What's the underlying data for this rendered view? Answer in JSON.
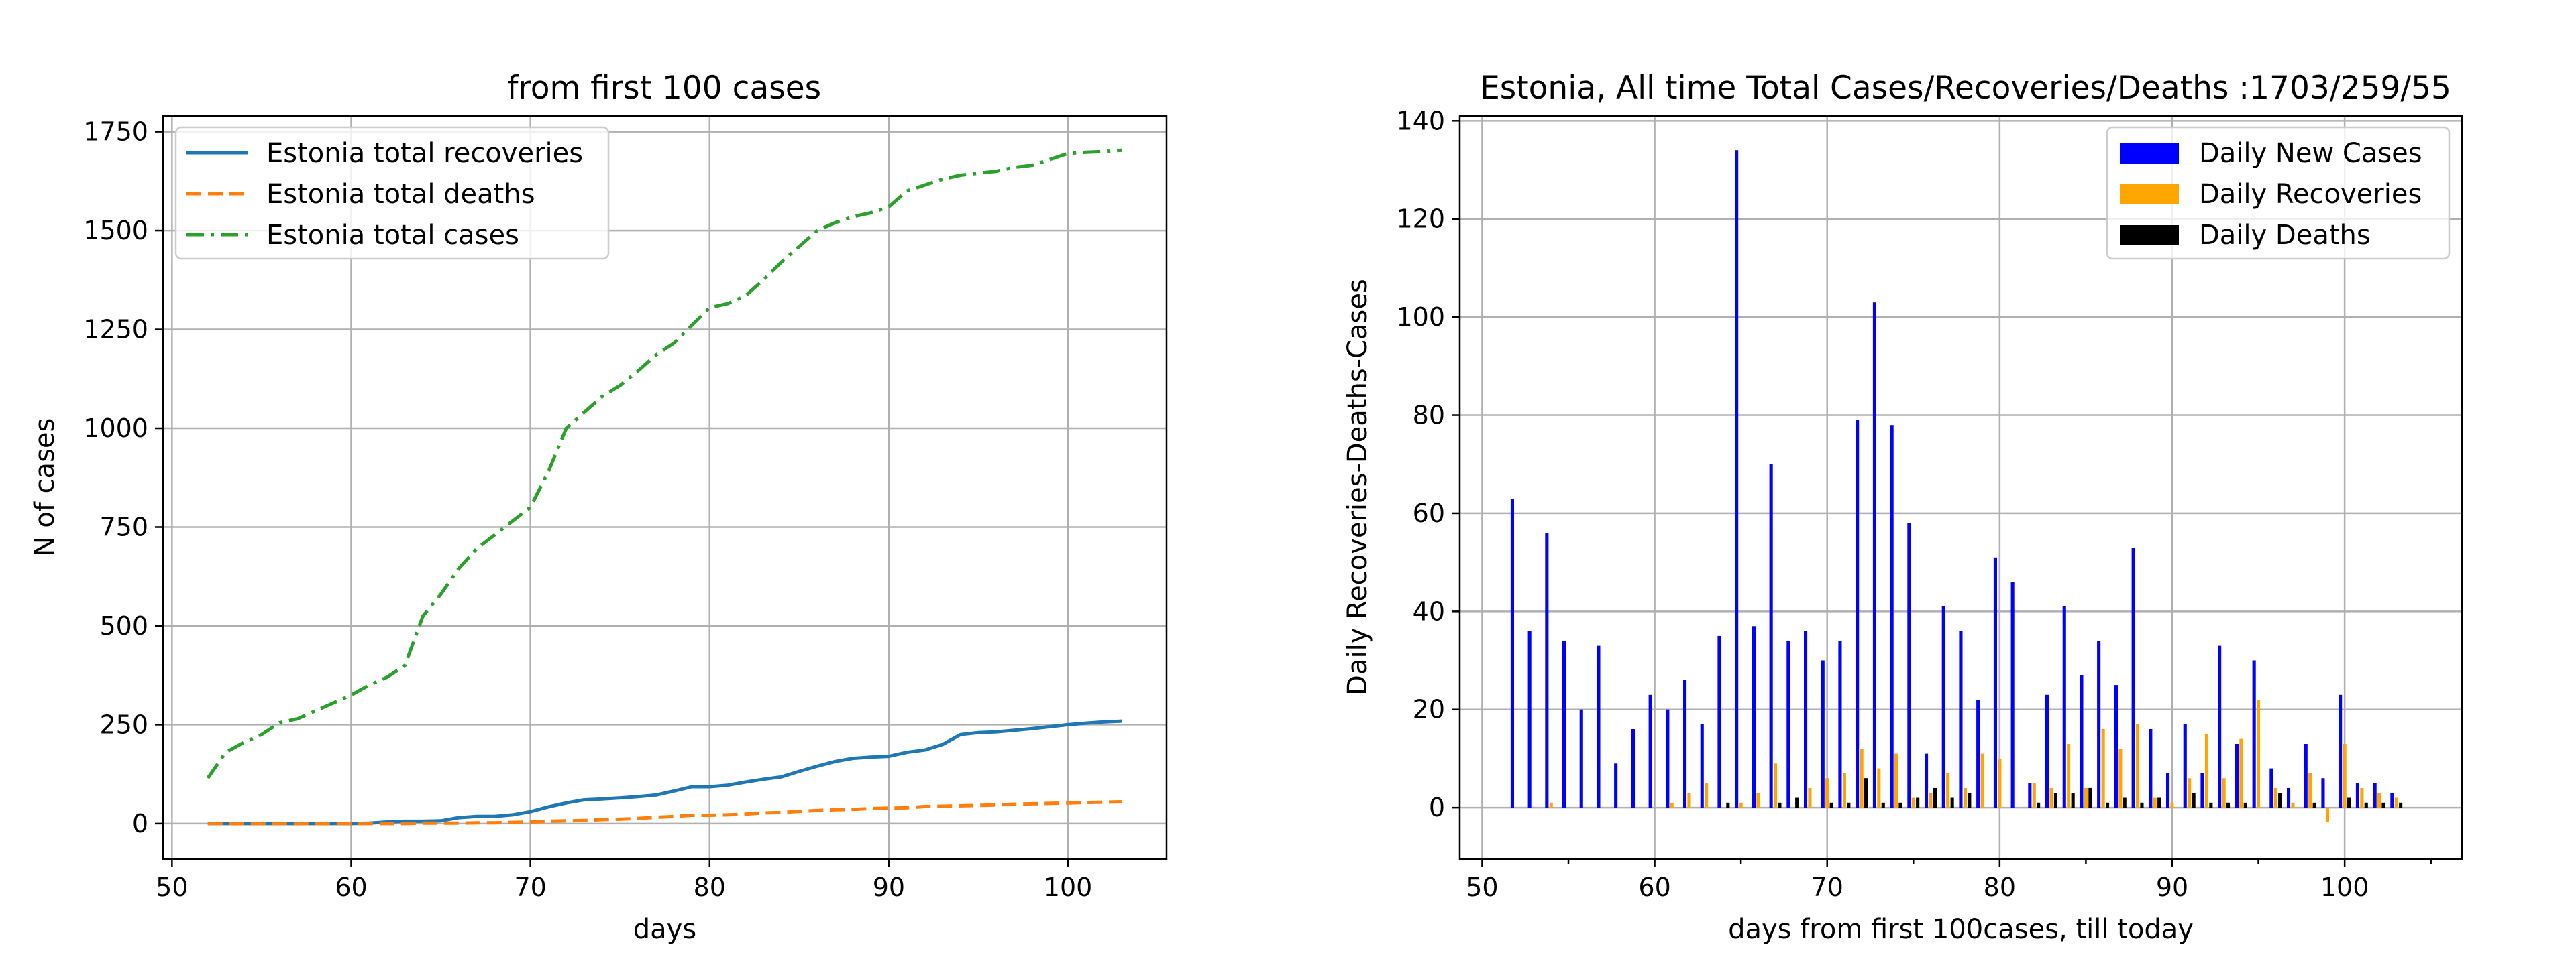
{
  "chart_data": [
    {
      "type": "line",
      "title": "from first 100  cases",
      "xlabel": "days",
      "ylabel": "N of cases",
      "xlim": [
        49.5,
        105.5
      ],
      "ylim": [
        -90,
        1790
      ],
      "xticks": [
        50,
        60,
        70,
        80,
        90,
        100
      ],
      "yticks": [
        0,
        250,
        500,
        750,
        1000,
        1250,
        1500,
        1750
      ],
      "grid": true,
      "legend_position": "upper-left",
      "x": [
        52,
        53,
        54,
        55,
        56,
        57,
        58,
        59,
        60,
        61,
        62,
        63,
        64,
        65,
        66,
        67,
        68,
        69,
        70,
        71,
        72,
        73,
        74,
        75,
        76,
        77,
        78,
        79,
        80,
        81,
        82,
        83,
        84,
        85,
        86,
        87,
        88,
        89,
        90,
        91,
        92,
        93,
        94,
        95,
        96,
        97,
        98,
        99,
        100,
        101,
        102,
        103
      ],
      "series": [
        {
          "name": "Estonia total recoveries",
          "color": "#1f77b4",
          "style": "solid",
          "values": [
            0,
            0,
            0,
            0,
            0,
            0,
            0,
            0,
            0,
            1,
            4,
            6,
            6,
            7,
            15,
            18,
            18,
            22,
            30,
            42,
            52,
            60,
            62,
            65,
            68,
            72,
            82,
            93,
            93,
            97,
            105,
            112,
            118,
            132,
            145,
            157,
            165,
            168,
            170,
            180,
            186,
            200,
            225,
            230,
            232,
            236,
            240,
            245,
            250,
            254,
            257,
            259
          ]
        },
        {
          "name": "Estonia total deaths",
          "color": "#ff7f0e",
          "style": "dashed",
          "values": [
            0,
            0,
            0,
            0,
            0,
            0,
            0,
            0,
            0,
            0,
            0,
            0,
            1,
            1,
            1,
            2,
            2,
            3,
            4,
            6,
            7,
            8,
            10,
            11,
            13,
            16,
            18,
            21,
            21,
            22,
            24,
            27,
            28,
            31,
            33,
            35,
            36,
            38,
            39,
            40,
            43,
            44,
            45,
            46,
            47,
            49,
            50,
            51,
            52,
            53,
            54,
            55
          ]
        },
        {
          "name": "Estonia total cases",
          "color": "#2ca02c",
          "style": "dashdot",
          "values": [
            115,
            180,
            205,
            225,
            255,
            265,
            285,
            305,
            325,
            350,
            370,
            400,
            525,
            580,
            645,
            695,
            730,
            765,
            800,
            890,
            1000,
            1040,
            1080,
            1108,
            1145,
            1185,
            1215,
            1260,
            1305,
            1315,
            1335,
            1375,
            1420,
            1460,
            1500,
            1520,
            1535,
            1545,
            1560,
            1600,
            1615,
            1630,
            1640,
            1645,
            1650,
            1660,
            1665,
            1680,
            1695,
            1698,
            1700,
            1703
          ]
        }
      ]
    },
    {
      "type": "bar",
      "title": "Estonia, All time Total Cases/Recoveries/Deaths :1703/259/55",
      "xlabel": "days from first 100cases, till today",
      "ylabel": "Daily Recoveries-Deaths-Cases",
      "xlim": [
        48.7,
        106.8
      ],
      "ylim": [
        -10.5,
        141
      ],
      "xticks": [
        50,
        60,
        70,
        80,
        90,
        100
      ],
      "yticks": [
        0,
        20,
        40,
        60,
        80,
        100,
        120,
        140
      ],
      "grid": true,
      "legend_position": "upper-right",
      "x": [
        52,
        53,
        54,
        55,
        56,
        57,
        58,
        59,
        60,
        61,
        62,
        63,
        64,
        65,
        66,
        67,
        68,
        69,
        70,
        71,
        72,
        73,
        74,
        75,
        76,
        77,
        78,
        79,
        80,
        81,
        82,
        83,
        84,
        85,
        86,
        87,
        88,
        89,
        90,
        91,
        92,
        93,
        94,
        95,
        96,
        97,
        98,
        99,
        100,
        101,
        102,
        103
      ],
      "series": [
        {
          "name": "Daily New Cases",
          "color": "#0000ff",
          "values": [
            63,
            36,
            56,
            34,
            20,
            33,
            9,
            16,
            23,
            20,
            26,
            17,
            35,
            134,
            37,
            70,
            34,
            36,
            30,
            34,
            79,
            103,
            78,
            58,
            11,
            41,
            36,
            22,
            51,
            46,
            5,
            23,
            41,
            27,
            34,
            25,
            53,
            16,
            7,
            17,
            7,
            33,
            13,
            30,
            8,
            4,
            13,
            6,
            23,
            5,
            5,
            3
          ]
        },
        {
          "name": "Daily Recoveries",
          "color": "#ffa500",
          "values": [
            0,
            0,
            1,
            0,
            0,
            0,
            0,
            0,
            0,
            1,
            3,
            5,
            0,
            1,
            3,
            9,
            0,
            4,
            6,
            7,
            12,
            8,
            11,
            2,
            3,
            7,
            4,
            11,
            10,
            0,
            5,
            4,
            13,
            4,
            16,
            12,
            17,
            2,
            1,
            6,
            15,
            6,
            14,
            22,
            4,
            1,
            7,
            -3,
            13,
            4,
            3,
            2
          ]
        },
        {
          "name": "Daily Deaths",
          "color": "#000000",
          "values": [
            0,
            0,
            0,
            0,
            0,
            0,
            0,
            0,
            0,
            0,
            0,
            0,
            1,
            0,
            0,
            1,
            2,
            0,
            1,
            1,
            6,
            1,
            1,
            2,
            4,
            2,
            3,
            0,
            0,
            0,
            1,
            3,
            3,
            4,
            1,
            2,
            1,
            2,
            0,
            3,
            1,
            1,
            1,
            0,
            3,
            0,
            1,
            0,
            2,
            1,
            1,
            1
          ]
        }
      ]
    }
  ]
}
